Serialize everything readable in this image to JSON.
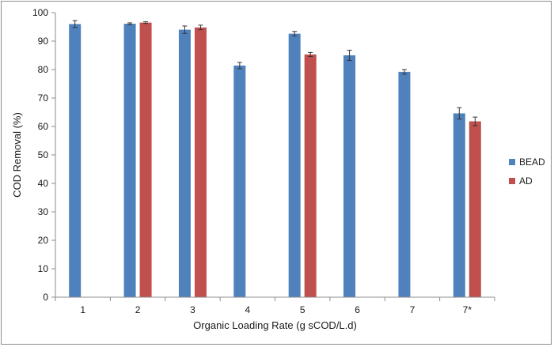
{
  "chart_data": {
    "type": "bar",
    "categories": [
      "1",
      "2",
      "3",
      "4",
      "5",
      "6",
      "7",
      "7*"
    ],
    "series": [
      {
        "name": "BEAD",
        "color": "#4f81bd",
        "values": [
          96.0,
          96.1,
          94.0,
          81.4,
          92.6,
          85.0,
          79.2,
          64.6
        ],
        "errors": [
          1.2,
          0.3,
          1.3,
          1.1,
          0.8,
          1.8,
          0.8,
          2.0
        ]
      },
      {
        "name": "AD",
        "color": "#c0504d",
        "values": [
          null,
          96.5,
          94.8,
          null,
          85.3,
          null,
          null,
          61.8
        ],
        "errors": [
          null,
          0.3,
          0.8,
          null,
          0.7,
          null,
          null,
          1.5
        ]
      }
    ],
    "xlabel": "Organic Loading Rate (g sCOD/L.d)",
    "ylabel": "COD Removal (%)",
    "ylim": [
      0,
      100
    ],
    "yticks": [
      0,
      10,
      20,
      30,
      40,
      50,
      60,
      70,
      80,
      90,
      100
    ],
    "grid": false,
    "legend_position": "right"
  }
}
